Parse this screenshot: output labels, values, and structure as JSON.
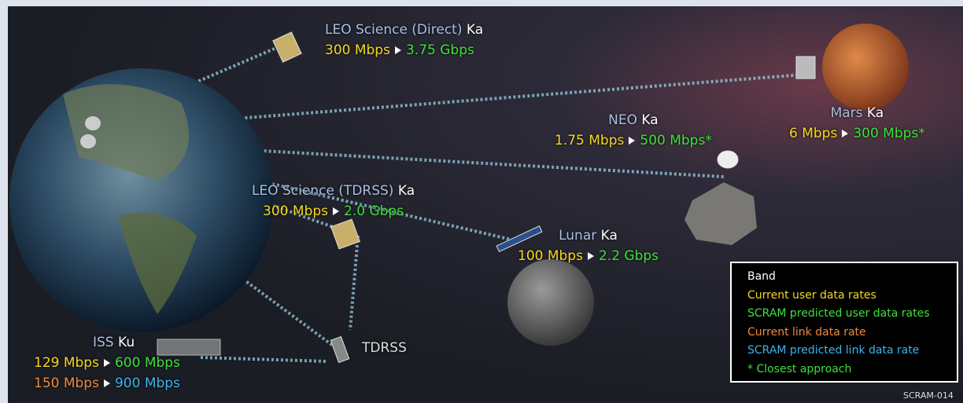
{
  "nodes": [
    {
      "name": "LEO Science (Direct)",
      "band": "Ka",
      "current_user_rate": "300 Mbps",
      "predicted_user_rate": "3.75 Gbps"
    },
    {
      "name": "NEO",
      "band": "Ka",
      "current_user_rate": "1.75 Mbps",
      "predicted_user_rate": "500 Mbps*"
    },
    {
      "name": "Mars",
      "band": "Ka",
      "current_user_rate": "6 Mbps",
      "predicted_user_rate": "300 Mbps*"
    },
    {
      "name": "LEO Science (TDRSS)",
      "band": "Ka",
      "current_user_rate": "300 Mbps",
      "predicted_user_rate": "2.0 Gbps"
    },
    {
      "name": "Lunar",
      "band": "Ka",
      "current_user_rate": "100 Mbps",
      "predicted_user_rate": "2.2 Gbps"
    },
    {
      "name": "ISS",
      "band": "Ku",
      "current_user_rate": "129 Mbps",
      "predicted_user_rate": "600 Mbps",
      "current_link_rate": "150 Mbps",
      "predicted_link_rate": "900 Mbps"
    }
  ],
  "relay": "TDRSS",
  "legend": {
    "title": "Band",
    "items": [
      "Current user data rates",
      "SCRAM predicted user data rates",
      "Current link data rate",
      "SCRAM predicted link data rate",
      "* Closest approach"
    ]
  },
  "footer": "SCRAM-014"
}
